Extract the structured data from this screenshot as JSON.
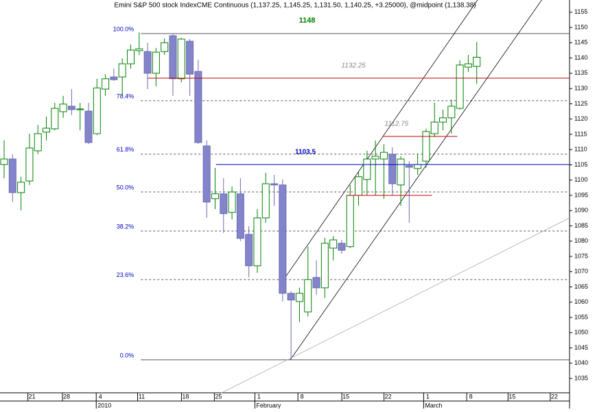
{
  "chart_data": {
    "type": "candlestick",
    "title": "Emini S&P 500 stock IndexCME Continuous (1,137.25, 1,145.25, 1,131.50, 1,140.25, +3.25000), @midpoint (1,138.38)",
    "up_color": "#008000",
    "down_color": "#8484cc",
    "open": [
      1105.1,
      1106.9,
      1095.9,
      1099.7,
      1109.6,
      1115.7,
      1116.8,
      1122.4,
      1124.2,
      1123.1,
      1122.6,
      1115.2,
      1129.8,
      1133.8,
      1133.8,
      1138.1,
      1142.4,
      1142.1,
      1135,
      1142.1,
      1147.3,
      1133.2,
      1145.5,
      1135.6,
      1111.2,
      1093.9,
      1095.5,
      1089.4,
      1095.5,
      1082.2,
      1071.9,
      1087.6,
      1098.8,
      1098.4,
      1062.9,
      1060.2,
      1056.8,
      1068.1,
      1064.7,
      1077.7,
      1079.3,
      1078.2,
      1095,
      1100.2,
      1106.9,
      1106.9,
      1108.5,
      1098.4,
      1104.7,
      1103.8,
      1106.2,
      1115.2,
      1119,
      1120.4,
      1123.5,
      1137,
      1137.25
    ],
    "high": [
      1113,
      1108.5,
      1101.1,
      1115.2,
      1118.1,
      1120.8,
      1125.3,
      1127.6,
      1129.8,
      1125.3,
      1125.3,
      1133.2,
      1134.7,
      1136.5,
      1139.9,
      1144.4,
      1148.4,
      1145,
      1143.3,
      1146.4,
      1147.8,
      1146.6,
      1146.2,
      1139.4,
      1113,
      1104,
      1100.6,
      1097.9,
      1100.6,
      1084.9,
      1090.5,
      1102.4,
      1101.7,
      1100.2,
      1063.6,
      1064.7,
      1078.2,
      1073.7,
      1081.1,
      1081.6,
      1080.4,
      1098.4,
      1102.9,
      1109.6,
      1113,
      1111.8,
      1110.7,
      1107.8,
      1106.2,
      1108.5,
      1116.8,
      1125.3,
      1123.1,
      1126.4,
      1139.2,
      1141,
      1145.25
    ],
    "low": [
      1100.6,
      1092.8,
      1090,
      1098.4,
      1108.5,
      1113,
      1116.3,
      1120.4,
      1121.3,
      1116.3,
      1111.8,
      1114.8,
      1127.6,
      1132.5,
      1127.6,
      1136.5,
      1141,
      1129.8,
      1130.7,
      1141,
      1127.6,
      1132,
      1127.6,
      1111.8,
      1087.6,
      1090.5,
      1082.7,
      1087.1,
      1080,
      1068.1,
      1069.6,
      1086,
      1091.6,
      1060.2,
      1041.1,
      1053.5,
      1055.3,
      1062.4,
      1061.3,
      1073.7,
      1075.9,
      1077.7,
      1091.6,
      1095,
      1095,
      1093.9,
      1095,
      1091.6,
      1086,
      1101.7,
      1104,
      1114.1,
      1116.3,
      1115.2,
      1123.1,
      1135.4,
      1131.5
    ],
    "close": [
      1106.9,
      1095.9,
      1099.3,
      1110.5,
      1115.2,
      1117,
      1123.5,
      1124.9,
      1123.1,
      1123.3,
      1112.3,
      1130.2,
      1133.2,
      1132.9,
      1138.1,
      1142.6,
      1143,
      1135,
      1141.9,
      1145,
      1133.2,
      1146.2,
      1134.7,
      1112.3,
      1092.8,
      1095.5,
      1089,
      1096.1,
      1080.9,
      1071.9,
      1087.6,
      1098.8,
      1098.4,
      1062.9,
      1060.7,
      1062.9,
      1067.4,
      1064.7,
      1079.3,
      1080.4,
      1077,
      1095,
      1101.1,
      1106.9,
      1107.8,
      1109.1,
      1098.8,
      1106.9,
      1104.2,
      1105.1,
      1115.9,
      1119,
      1120.4,
      1124.2,
      1137.7,
      1138.1,
      1140.25
    ],
    "xlim": [
      -0.49,
      67
    ],
    "ylim": [
      1030.3,
      1159
    ],
    "yticks": [
      1035,
      1040,
      1045,
      1050,
      1055,
      1060,
      1065,
      1070,
      1075,
      1080,
      1085,
      1090,
      1095,
      1100,
      1105,
      1110,
      1115,
      1120,
      1125,
      1130,
      1135,
      1140,
      1145,
      1150,
      1155
    ],
    "xticks": [
      {
        "value": 3.3,
        "label": "21"
      },
      {
        "value": 7.4,
        "label": "28"
      },
      {
        "value": 11.4,
        "label": "4"
      },
      {
        "value": 16.3,
        "label": "11"
      },
      {
        "value": 21.5,
        "label": "18"
      },
      {
        "value": 25.4,
        "label": "25"
      },
      {
        "value": 30.2,
        "label": "1"
      },
      {
        "value": 35.3,
        "label": "8"
      },
      {
        "value": 40.5,
        "label": "15"
      },
      {
        "value": 45.5,
        "label": "22"
      },
      {
        "value": 50.2,
        "label": "1"
      },
      {
        "value": 55.3,
        "label": "8"
      },
      {
        "value": 60.2,
        "label": "15"
      },
      {
        "value": 65.2,
        "label": "22"
      }
    ],
    "periods": [
      {
        "value": 11.4,
        "label": "2010"
      },
      {
        "value": 30.2,
        "label": "February"
      },
      {
        "value": 50.2,
        "label": "March"
      }
    ],
    "fib_start": 16.2,
    "fib_levels": [
      {
        "value": 1148,
        "label": "100.0%"
      },
      {
        "value": 1126,
        "label": "78.4%"
      },
      {
        "value": 1108.5,
        "label": "61.8%"
      },
      {
        "value": 1096.1,
        "label": "50.0%"
      },
      {
        "value": 1083.3,
        "label": "38.2%"
      },
      {
        "value": 1067.4,
        "label": "23.6%"
      },
      {
        "value": 1041.1,
        "label": "0.0%"
      }
    ],
    "hlines": [
      {
        "y": 1133.4,
        "x0": 17,
        "x1": 67,
        "color": "#c00000",
        "label": "1132.25",
        "label_x": 41.4,
        "label_color": "#888888"
      },
      {
        "y": 1114.3,
        "x0": 44.9,
        "x1": 53.7,
        "color": "#c00000",
        "label": "1112.75",
        "label_x": 46.5,
        "label_color": "#888888"
      },
      {
        "y": 1095,
        "x0": 40.6,
        "x1": 50.7,
        "color": "#c00000"
      },
      {
        "y": 1105.1,
        "x0": 25.1,
        "x1": 67,
        "color": "#0000c0",
        "label": "1103.5",
        "label_x": 35.7,
        "label_color": "#0000c0"
      }
    ],
    "top_label": {
      "text": "1148",
      "x": 35.9,
      "color": "#008000"
    },
    "trendlines": [
      {
        "x": [
          33.3,
          56.1
        ],
        "y": [
          1068.1,
          1159
        ],
        "color": "#000000"
      },
      {
        "x": [
          33.9,
          63.7
        ],
        "y": [
          1041.1,
          1159
        ],
        "color": "#000000"
      },
      {
        "x": [
          25.5,
          67
        ],
        "y": [
          1029.9,
          1087.6
        ],
        "color": "#aaaaaa"
      }
    ]
  }
}
